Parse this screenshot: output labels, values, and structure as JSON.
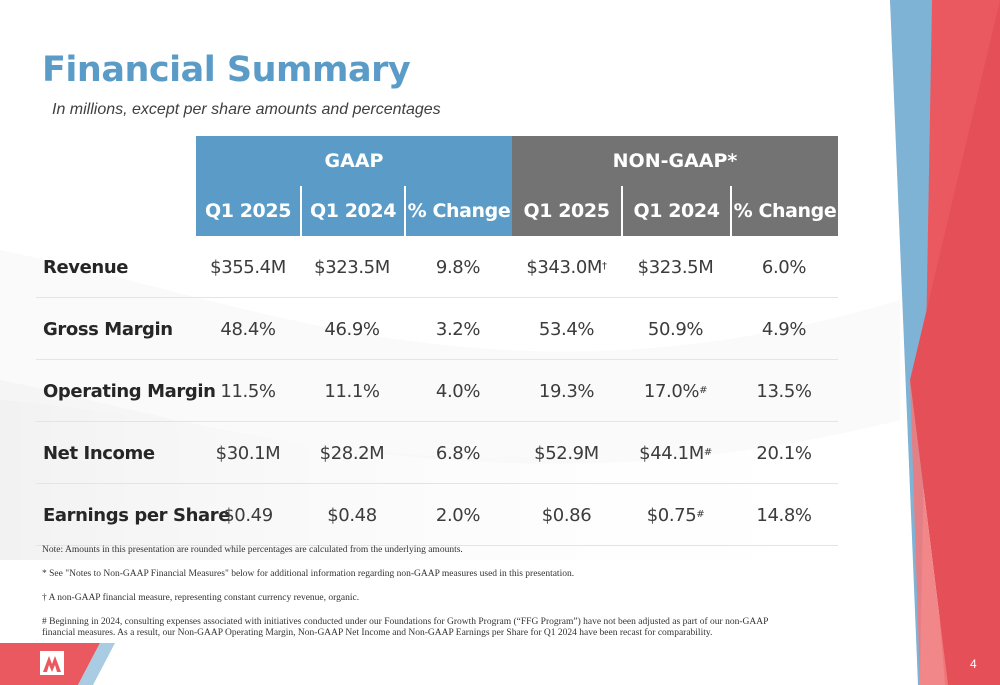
{
  "title": "Financial Summary",
  "subtitle": "In millions, except per share amounts and percentages",
  "table": {
    "groups": [
      "GAAP",
      "NON-GAAP*"
    ],
    "columns": [
      "Q1 2025",
      "Q1 2024",
      "% Change",
      "Q1 2025",
      "Q1 2024",
      "% Change"
    ],
    "rows": [
      {
        "label": "Revenue",
        "cells": [
          {
            "v": "$355.4M",
            "s": ""
          },
          {
            "v": "$323.5M",
            "s": ""
          },
          {
            "v": "9.8%",
            "s": ""
          },
          {
            "v": "$343.0M",
            "s": "†"
          },
          {
            "v": "$323.5M",
            "s": ""
          },
          {
            "v": "6.0%",
            "s": ""
          }
        ]
      },
      {
        "label": "Gross Margin",
        "cells": [
          {
            "v": "48.4%",
            "s": ""
          },
          {
            "v": "46.9%",
            "s": ""
          },
          {
            "v": "3.2%",
            "s": ""
          },
          {
            "v": "53.4%",
            "s": ""
          },
          {
            "v": "50.9%",
            "s": ""
          },
          {
            "v": "4.9%",
            "s": ""
          }
        ]
      },
      {
        "label": "Operating Margin",
        "cells": [
          {
            "v": "11.5%",
            "s": ""
          },
          {
            "v": "11.1%",
            "s": ""
          },
          {
            "v": "4.0%",
            "s": ""
          },
          {
            "v": "19.3%",
            "s": ""
          },
          {
            "v": "17.0%",
            "s": "#"
          },
          {
            "v": "13.5%",
            "s": ""
          }
        ]
      },
      {
        "label": "Net Income",
        "cells": [
          {
            "v": "$30.1M",
            "s": ""
          },
          {
            "v": "$28.2M",
            "s": ""
          },
          {
            "v": "6.8%",
            "s": ""
          },
          {
            "v": "$52.9M",
            "s": ""
          },
          {
            "v": "$44.1M",
            "s": "#"
          },
          {
            "v": "20.1%",
            "s": ""
          }
        ]
      },
      {
        "label": "Earnings per Share",
        "cells": [
          {
            "v": "$0.49",
            "s": ""
          },
          {
            "v": "$0.48",
            "s": ""
          },
          {
            "v": "2.0%",
            "s": ""
          },
          {
            "v": "$0.86",
            "s": ""
          },
          {
            "v": "$0.75",
            "s": "#"
          },
          {
            "v": "14.8%",
            "s": ""
          }
        ]
      }
    ]
  },
  "notes": {
    "note1": "Note: Amounts in this presentation are rounded while percentages are calculated from the underlying amounts.",
    "note2": "* See \"Notes to Non-GAAP Financial Measures\" below for additional information regarding non-GAAP measures used in this presentation.",
    "note3": "† A non-GAAP financial measure, representing constant currency revenue, organic.",
    "note4": "# Beginning in 2024, consulting expenses associated with initiatives conducted under our Foundations for Growth Program (“FFG Program”) have not been adjusted as part of our non-GAAP financial measures. As a result, our Non-GAAP Operating Margin, Non-GAAP Net Income and Non-GAAP Earnings per Share for Q1 2024 have been recast for comparability."
  },
  "page_number": "4",
  "colors": {
    "gaap_blue": "#5a9cc7",
    "nongaap_gray": "#737373",
    "accent_red": "#e8525a"
  },
  "icons": {
    "logo": "company-logo-icon"
  }
}
